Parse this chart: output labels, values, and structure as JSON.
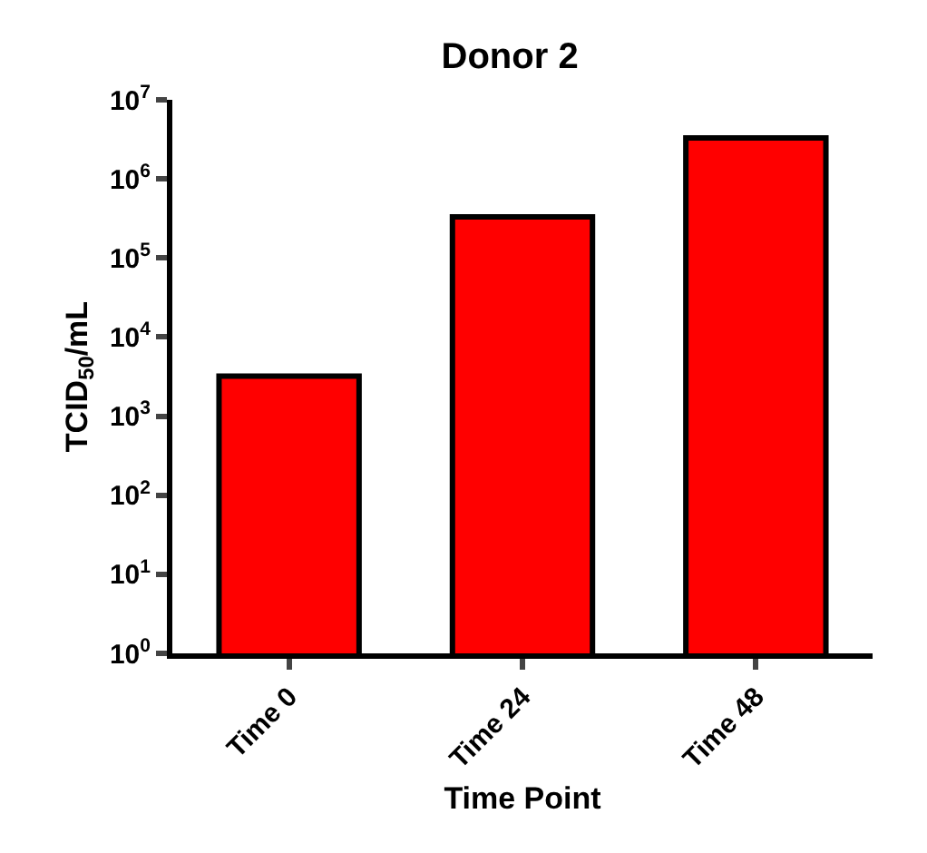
{
  "chart_data": {
    "type": "bar",
    "title": "Donor 2",
    "xlabel": "Time Point",
    "ylabel": "TCID$_{50}$/mL",
    "categories": [
      "Time 0",
      "Time 24",
      "Time 48"
    ],
    "values": [
      3200,
      330000,
      3300000
    ],
    "color": "#ff0000",
    "log": true,
    "grid": false,
    "ylim": [
      1,
      10000000
    ],
    "yticks": [
      {
        "value": 1,
        "label": "10$^{0}$"
      },
      {
        "value": 10,
        "label": "10$^{1}$"
      },
      {
        "value": 100,
        "label": "10$^{2}$"
      },
      {
        "value": 1000,
        "label": "10$^{3}$"
      },
      {
        "value": 10000,
        "label": "10$^{4}$"
      },
      {
        "value": 100000,
        "label": "10$^{5}$"
      },
      {
        "value": 1000000,
        "label": "10$^{6}$"
      },
      {
        "value": 10000000,
        "label": "10$^{7}$"
      }
    ]
  }
}
